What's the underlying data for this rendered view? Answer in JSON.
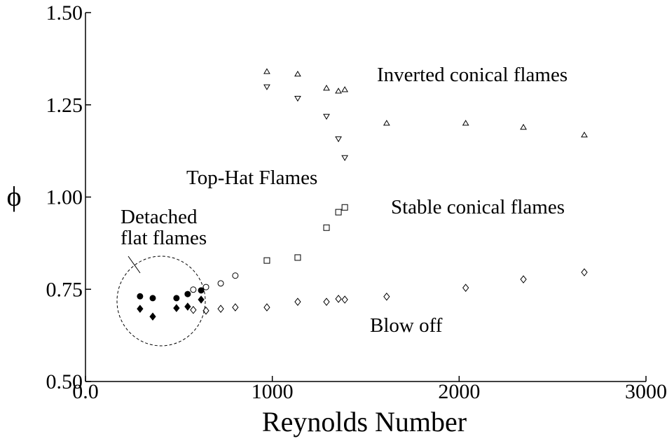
{
  "chart_data": {
    "type": "scatter",
    "x_label": "Reynolds Number",
    "y_label": "ϕ",
    "xlim": [
      0,
      3000
    ],
    "ylim": [
      0.5,
      1.5
    ],
    "xticks": [
      {
        "value": 0,
        "label": "0.0"
      },
      1000,
      2000,
      3000
    ],
    "yticks": [
      {
        "value": 0.5,
        "label": "0.50"
      },
      {
        "value": 0.75,
        "label": "0.75"
      },
      {
        "value": 1.0,
        "label": "1.00"
      },
      {
        "value": 1.25,
        "label": "1.25"
      },
      {
        "value": 1.5,
        "label": "1.50"
      }
    ],
    "grid": false,
    "series": [
      {
        "marker": "triangle-up",
        "filled": false,
        "color": "#000000",
        "x": [
          971,
          1136,
          1290,
          1354,
          1388,
          1612,
          2035,
          2344,
          2670
        ],
        "values": [
          1.34,
          1.333,
          1.295,
          1.287,
          1.291,
          1.2,
          1.2,
          1.189,
          1.168
        ]
      },
      {
        "marker": "triangle-down",
        "filled": false,
        "color": "#000000",
        "x": [
          971,
          1136,
          1290,
          1354,
          1388
        ],
        "values": [
          1.299,
          1.268,
          1.219,
          1.158,
          1.107
        ]
      },
      {
        "marker": "square",
        "filled": false,
        "color": "#000000",
        "x": [
          971,
          1136,
          1290,
          1354,
          1388
        ],
        "values": [
          0.828,
          0.836,
          0.917,
          0.959,
          0.972
        ]
      },
      {
        "marker": "circle",
        "filled": false,
        "color": "#000000",
        "x": [
          577,
          645,
          724,
          802
        ],
        "values": [
          0.749,
          0.756,
          0.766,
          0.787
        ]
      },
      {
        "marker": "diamond",
        "filled": false,
        "color": "#000000",
        "x": [
          577,
          645,
          724,
          802,
          971,
          1136,
          1290,
          1354,
          1388,
          1612,
          2035,
          2344,
          2670
        ],
        "values": [
          0.694,
          0.692,
          0.697,
          0.701,
          0.701,
          0.716,
          0.716,
          0.724,
          0.722,
          0.73,
          0.754,
          0.777,
          0.796
        ]
      },
      {
        "marker": "circle",
        "filled": true,
        "color": "#000000",
        "x": [
          292,
          360,
          487,
          547,
          619
        ],
        "values": [
          0.731,
          0.726,
          0.726,
          0.737,
          0.747
        ]
      },
      {
        "marker": "diamond",
        "filled": true,
        "color": "#000000",
        "x": [
          292,
          360,
          487,
          547,
          619
        ],
        "values": [
          0.697,
          0.676,
          0.699,
          0.703,
          0.722
        ]
      }
    ],
    "annotations": [
      "Inverted conical flames",
      "Top-Hat Flames",
      "Stable conical flames",
      "Detached",
      "flat flames",
      "Blow off"
    ]
  }
}
